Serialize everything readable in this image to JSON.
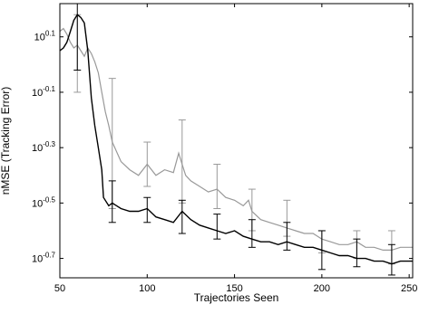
{
  "chart_data": {
    "type": "line",
    "xlabel": "Trajectories Seen",
    "ylabel": "nMSE (Tracking Error)",
    "xlim": [
      50,
      252
    ],
    "ylim": [
      -0.77,
      0.22
    ],
    "yscale": "log10",
    "grid": false,
    "x_ticks": [
      50,
      100,
      150,
      200,
      250
    ],
    "x_tick_labels": [
      "50",
      "100",
      "150",
      "200",
      "250"
    ],
    "y_ticks": [
      0.1,
      -0.1,
      -0.3,
      -0.5,
      -0.7
    ],
    "y_tick_labels": [
      {
        "base": "10",
        "exp": "0.1"
      },
      {
        "base": "10",
        "exp": "-0.1"
      },
      {
        "base": "10",
        "exp": "-0.3"
      },
      {
        "base": "10",
        "exp": "-0.5"
      },
      {
        "base": "10",
        "exp": "-0.7"
      }
    ],
    "series": [
      {
        "color": "#999999",
        "x": [
          50,
          52,
          54,
          56,
          58,
          60,
          62,
          64,
          66,
          68,
          70,
          72,
          74,
          76,
          78,
          80,
          85,
          90,
          95,
          100,
          105,
          110,
          115,
          118,
          120,
          122,
          125,
          130,
          135,
          140,
          145,
          150,
          155,
          158,
          160,
          165,
          170,
          175,
          180,
          185,
          190,
          195,
          200,
          205,
          210,
          215,
          220,
          225,
          230,
          235,
          240,
          245,
          250,
          252
        ],
        "y": [
          0.12,
          0.13,
          0.11,
          0.08,
          0.06,
          0.07,
          0.05,
          0.03,
          0.06,
          0.04,
          0.01,
          -0.03,
          -0.1,
          -0.17,
          -0.22,
          -0.28,
          -0.35,
          -0.38,
          -0.4,
          -0.36,
          -0.4,
          -0.38,
          -0.39,
          -0.32,
          -0.36,
          -0.4,
          -0.42,
          -0.44,
          -0.46,
          -0.45,
          -0.48,
          -0.49,
          -0.51,
          -0.49,
          -0.53,
          -0.56,
          -0.57,
          -0.58,
          -0.59,
          -0.6,
          -0.61,
          -0.61,
          -0.63,
          -0.64,
          -0.65,
          -0.65,
          -0.64,
          -0.66,
          -0.66,
          -0.67,
          -0.67,
          -0.66,
          -0.66,
          -0.66
        ],
        "err_x": [
          60,
          80,
          100,
          120,
          140,
          160,
          180,
          200,
          220,
          240
        ],
        "err_low": [
          -0.1,
          -0.52,
          -0.44,
          -0.5,
          -0.52,
          -0.6,
          -0.62,
          -0.68,
          -0.7,
          -0.72
        ],
        "err_high": [
          0.18,
          -0.05,
          -0.28,
          -0.2,
          -0.36,
          -0.45,
          -0.49,
          -0.6,
          -0.6,
          -0.6
        ]
      },
      {
        "color": "#000000",
        "x": [
          50,
          52,
          54,
          56,
          58,
          60,
          62,
          64,
          66,
          68,
          70,
          72,
          74,
          75,
          78,
          80,
          85,
          90,
          95,
          100,
          105,
          110,
          115,
          120,
          125,
          130,
          135,
          140,
          145,
          150,
          155,
          160,
          165,
          170,
          175,
          180,
          185,
          190,
          195,
          200,
          205,
          210,
          215,
          220,
          225,
          230,
          235,
          240,
          245,
          250,
          252
        ],
        "y": [
          0.05,
          0.06,
          0.08,
          0.12,
          0.16,
          0.18,
          0.17,
          0.15,
          0.05,
          -0.12,
          -0.22,
          -0.3,
          -0.38,
          -0.48,
          -0.51,
          -0.5,
          -0.52,
          -0.53,
          -0.53,
          -0.52,
          -0.55,
          -0.56,
          -0.57,
          -0.53,
          -0.56,
          -0.58,
          -0.59,
          -0.6,
          -0.61,
          -0.6,
          -0.62,
          -0.63,
          -0.64,
          -0.64,
          -0.65,
          -0.64,
          -0.65,
          -0.66,
          -0.66,
          -0.67,
          -0.68,
          -0.69,
          -0.69,
          -0.7,
          -0.7,
          -0.71,
          -0.71,
          -0.72,
          -0.71,
          -0.71,
          -0.71
        ],
        "err_x": [
          60,
          80,
          100,
          120,
          140,
          160,
          180,
          200,
          220,
          240
        ],
        "err_low": [
          -0.02,
          -0.57,
          -0.57,
          -0.61,
          -0.63,
          -0.66,
          -0.67,
          -0.74,
          -0.73,
          -0.76
        ],
        "err_high": [
          0.22,
          -0.42,
          -0.48,
          -0.49,
          -0.54,
          -0.56,
          -0.57,
          -0.6,
          -0.63,
          -0.65
        ]
      }
    ]
  }
}
